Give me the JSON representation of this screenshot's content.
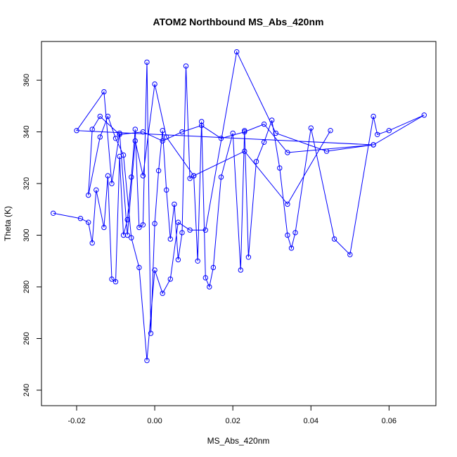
{
  "chart_data": {
    "type": "scatter",
    "title": "ATOM2 Northbound MS_Abs_420nm",
    "xlabel": "MS_Abs_420nm",
    "ylabel": "Theta (K)",
    "xlim": [
      -0.029,
      0.072
    ],
    "ylim": [
      234,
      375
    ],
    "xticks": [
      -0.02,
      0.0,
      0.02,
      0.04,
      0.06
    ],
    "xtick_labels": [
      "-0.02",
      "0.00",
      "0.02",
      "0.04",
      "0.06"
    ],
    "yticks": [
      240,
      260,
      280,
      300,
      320,
      340,
      360
    ],
    "ytick_labels": [
      "240",
      "260",
      "280",
      "300",
      "320",
      "340",
      "360"
    ],
    "grid": false,
    "connected": true,
    "marker": "open-circle",
    "color": "#0000ff",
    "series": [
      {
        "x": [
          -0.026,
          -0.019,
          -0.017,
          -0.016,
          -0.015,
          -0.013,
          -0.012,
          -0.011,
          -0.01,
          -0.009,
          -0.008,
          -0.007,
          -0.006,
          -0.005,
          -0.004,
          -0.003,
          -0.002,
          -0.001,
          0.0,
          0.001,
          0.002,
          0.003,
          0.004,
          0.005,
          0.006,
          0.007,
          0.008,
          0.009,
          0.01,
          0.011,
          0.012,
          0.013,
          0.014,
          0.015,
          0.017,
          0.02,
          0.022,
          0.023,
          0.024,
          0.026,
          0.028,
          0.03,
          0.032,
          0.034,
          0.035,
          0.036,
          0.04,
          0.046,
          0.05,
          0.056,
          0.057,
          0.06,
          0.069,
          0.056,
          0.034,
          0.028,
          0.023,
          0.017,
          0.012,
          0.007,
          0.002,
          -0.003,
          -0.009,
          -0.014,
          -0.016,
          -0.017,
          -0.014,
          -0.012,
          -0.01,
          -0.008,
          -0.006,
          -0.004,
          -0.002,
          0.0,
          0.002,
          0.004,
          0.006,
          0.009,
          0.013,
          0.021,
          0.031,
          0.044,
          0.056,
          -0.02,
          -0.013,
          -0.011,
          -0.009,
          -0.007,
          -0.005,
          -0.003,
          0.0,
          0.003,
          0.01,
          0.023,
          0.034,
          0.045
        ],
        "y": [
          308.5,
          306.5,
          305.0,
          297.0,
          317.5,
          303.0,
          323.0,
          283.0,
          282.0,
          330.5,
          300.0,
          306.0,
          322.5,
          341.0,
          303.0,
          304.0,
          367.0,
          262.0,
          304.5,
          325.0,
          340.5,
          317.5,
          298.5,
          312.0,
          290.5,
          301.0,
          365.5,
          322.0,
          323.0,
          290.0,
          344.0,
          283.5,
          280.0,
          287.5,
          322.5,
          339.5,
          286.5,
          340.5,
          291.5,
          328.5,
          336.0,
          344.5,
          326.0,
          300.0,
          295.0,
          301.0,
          341.5,
          298.5,
          292.5,
          346.0,
          339.0,
          340.5,
          346.5,
          335.0,
          332.0,
          343.0,
          340.0,
          337.5,
          342.5,
          340.0,
          336.5,
          340.0,
          339.0,
          346.0,
          341.0,
          315.5,
          338.0,
          346.0,
          337.5,
          331.0,
          299.0,
          287.5,
          251.5,
          286.5,
          277.5,
          283.0,
          305.0,
          302.0,
          302.0,
          371.0,
          339.5,
          332.5,
          335.0,
          340.5,
          355.5,
          320.0,
          339.5,
          300.0,
          336.5,
          323.0,
          358.5,
          338.0,
          323.0,
          332.5,
          312.0,
          340.5
        ]
      }
    ]
  }
}
